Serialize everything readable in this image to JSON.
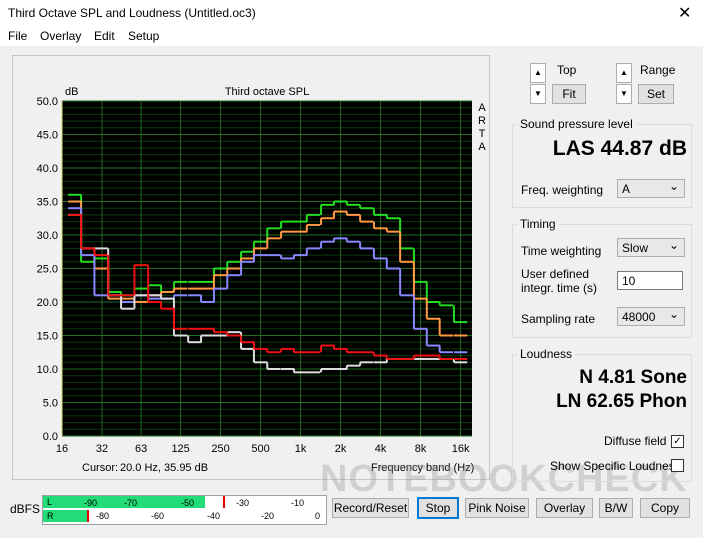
{
  "window": {
    "title": "Third Octave SPL and Loudness (Untitled.oc3)"
  },
  "menu": [
    "File",
    "Overlay",
    "Edit",
    "Setup"
  ],
  "chart_data": {
    "type": "line",
    "title": "Third octave SPL",
    "y_label": "dB",
    "x_label": "Frequency band (Hz)",
    "side_label": "ARTA",
    "cursor_label": "Cursor:",
    "cursor_value": "20.0 Hz, 35.95 dB",
    "x": [
      20,
      25,
      31.5,
      40,
      50,
      63,
      80,
      100,
      125,
      160,
      200,
      250,
      315,
      400,
      500,
      630,
      800,
      1000,
      1250,
      1600,
      2000,
      2500,
      3150,
      4000,
      5000,
      6300,
      8000,
      10000,
      12500,
      16000
    ],
    "xlim": [
      16,
      19500
    ],
    "log_x": true,
    "xticks": [
      16,
      32,
      63,
      125,
      250,
      500,
      {
        "value": 1000,
        "label": "1k"
      },
      {
        "value": 2000,
        "label": "2k"
      },
      {
        "value": 4000,
        "label": "4k"
      },
      {
        "value": 8000,
        "label": "8k"
      },
      {
        "value": 16000,
        "label": "16k"
      }
    ],
    "ylim": [
      0,
      50
    ],
    "yticks": [
      {
        "value": 0,
        "label": "0.0"
      },
      {
        "value": 5,
        "label": "5.0"
      },
      {
        "value": 10,
        "label": "10.0"
      },
      {
        "value": 15,
        "label": "15.0"
      },
      {
        "value": 20,
        "label": "20.0"
      },
      {
        "value": 25,
        "label": "25.0"
      },
      {
        "value": 30,
        "label": "30.0"
      },
      {
        "value": 35,
        "label": "35.0"
      },
      {
        "value": 40,
        "label": "40.0"
      },
      {
        "value": 45,
        "label": "45.0"
      },
      {
        "value": 50,
        "label": "50.0"
      }
    ],
    "grid": true,
    "series": [
      {
        "color": "#22dd22",
        "values": [
          36,
          26,
          26.5,
          21.5,
          21,
          22,
          22.5,
          21.5,
          23,
          23,
          23,
          25,
          26,
          27.5,
          29,
          31,
          32,
          32,
          33,
          34.5,
          35,
          34.5,
          34,
          33,
          32.5,
          28,
          23,
          20,
          19.5,
          17
        ]
      },
      {
        "color": "#ff9944",
        "values": [
          35,
          28,
          25,
          20.5,
          20.5,
          20,
          21,
          21.5,
          22,
          22,
          22,
          24,
          25,
          26.5,
          28,
          29.5,
          30.5,
          30.5,
          31.5,
          32.5,
          33.5,
          33,
          32,
          31,
          30.5,
          26,
          20.5,
          17.5,
          15,
          15
        ]
      },
      {
        "color": "#8888ff",
        "values": [
          34,
          27,
          21,
          21,
          20,
          21,
          20.5,
          20.5,
          21,
          21,
          20,
          22,
          24,
          26,
          27,
          27,
          26.5,
          27,
          28,
          29,
          29.5,
          29,
          28,
          26.5,
          25,
          21,
          16,
          13.5,
          12.5,
          12.5
        ]
      },
      {
        "color": "#dddddd",
        "values": [
          33,
          28,
          28,
          21,
          19,
          21,
          21,
          20.5,
          15,
          14,
          15,
          15,
          15.5,
          13,
          11,
          10,
          10,
          9.5,
          9.5,
          10,
          10,
          10.5,
          11,
          11,
          11.5,
          11.5,
          11.5,
          11.5,
          11.5,
          11
        ]
      },
      {
        "color": "#ee1111",
        "values": [
          33,
          28,
          27,
          21,
          21,
          25.5,
          20,
          19,
          16,
          16,
          16,
          15.5,
          15,
          14,
          13,
          12.5,
          13,
          12.5,
          12.5,
          13.5,
          13,
          12.5,
          12.5,
          12,
          11.5,
          11.5,
          12,
          12,
          11.5,
          11.5
        ]
      }
    ]
  },
  "controls": {
    "top_label": "Top",
    "fit": "Fit",
    "range_label": "Range",
    "set": "Set",
    "spl_group": "Sound pressure level",
    "spl_value": "LAS 44.87 dB",
    "freq_weighting_label": "Freq. weighting",
    "freq_weighting": "A",
    "timing_group": "Timing",
    "time_weighting_label": "Time weighting",
    "time_weighting": "Slow",
    "integr_label": "User defined integr. time (s)",
    "integr_value": "10",
    "sampling_label": "Sampling rate",
    "sampling_value": "48000",
    "loudness_group": "Loudness",
    "sone": "N 4.81 Sone",
    "phon": "LN 62.65 Phon",
    "diffuse": "Diffuse field",
    "specific": "Show Specific Loudness"
  },
  "meter": {
    "label": "dBFS",
    "l": "L",
    "l_ticks": [
      "-90",
      "-70",
      "-50",
      "-30",
      "-10"
    ],
    "r": "R",
    "r_ticks": [
      "-80",
      "-60",
      "-40",
      "-20",
      "0"
    ]
  },
  "buttons": [
    "Record/Reset",
    "Stop",
    "Pink Noise",
    "Overlay",
    "B/W",
    "Copy"
  ],
  "watermark": "NOTEBOOKCHECK"
}
